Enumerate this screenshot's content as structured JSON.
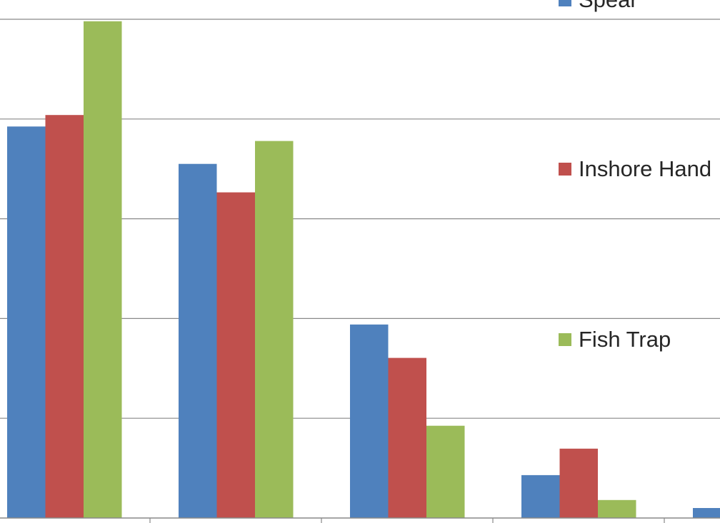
{
  "chart_data": {
    "type": "bar",
    "title": "",
    "xlabel": "",
    "ylabel": "",
    "categories": [
      "",
      "",
      "",
      "",
      ""
    ],
    "ylim": [
      0,
      100
    ],
    "grid": true,
    "legend_position": "right",
    "series": [
      {
        "name": "Spear",
        "color": "#4f81bd",
        "values": [
          78.5,
          71.0,
          38.8,
          8.6,
          2.0
        ]
      },
      {
        "name": "Inshore Hand",
        "color": "#c0504d",
        "values": [
          80.8,
          65.3,
          32.1,
          13.9,
          null
        ]
      },
      {
        "name": "Fish Trap",
        "color": "#9bbb59",
        "values": [
          99.6,
          75.6,
          18.5,
          3.6,
          null
        ]
      }
    ]
  }
}
